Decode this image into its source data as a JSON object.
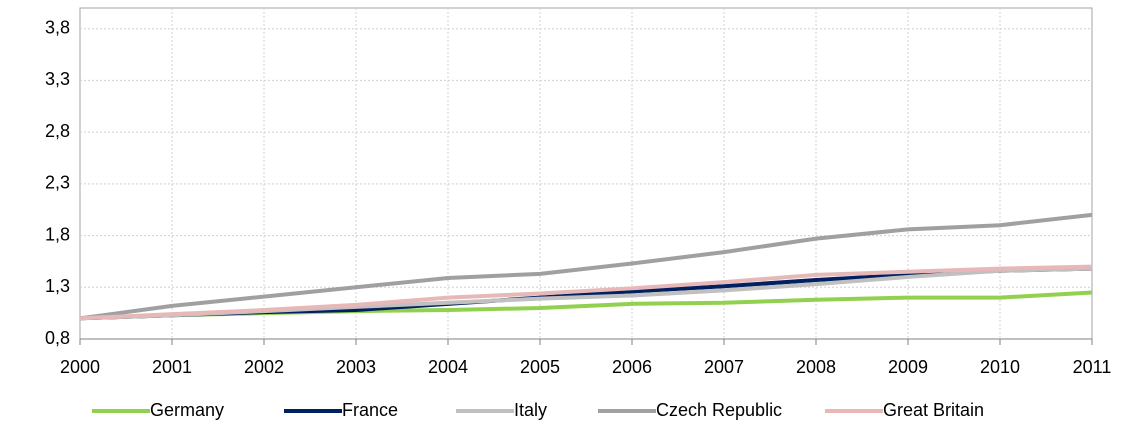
{
  "chart_data": {
    "type": "line",
    "categories": [
      "2000",
      "2001",
      "2002",
      "2003",
      "2004",
      "2005",
      "2006",
      "2007",
      "2008",
      "2009",
      "2010",
      "2011"
    ],
    "series": [
      {
        "name": "Germany",
        "color": "#92d050",
        "values": [
          1.0,
          1.03,
          1.05,
          1.07,
          1.08,
          1.1,
          1.14,
          1.15,
          1.18,
          1.2,
          1.2,
          1.25
        ]
      },
      {
        "name": "France",
        "color": "#002060",
        "values": [
          1.0,
          1.03,
          1.06,
          1.08,
          1.14,
          1.2,
          1.26,
          1.31,
          1.37,
          1.42,
          1.46,
          1.48
        ]
      },
      {
        "name": "Italy",
        "color": "#c0c0c0",
        "values": [
          1.0,
          1.03,
          1.07,
          1.11,
          1.15,
          1.19,
          1.22,
          1.27,
          1.33,
          1.4,
          1.46,
          1.48
        ]
      },
      {
        "name": "Czech Republic",
        "color": "#a0a0a0",
        "values": [
          1.0,
          1.12,
          1.21,
          1.3,
          1.39,
          1.43,
          1.53,
          1.64,
          1.77,
          1.86,
          1.9,
          2.0
        ]
      },
      {
        "name": "Great Britain",
        "color": "#e6b9b8",
        "values": [
          1.0,
          1.04,
          1.08,
          1.13,
          1.2,
          1.24,
          1.29,
          1.35,
          1.42,
          1.45,
          1.48,
          1.5
        ]
      }
    ],
    "ylim": [
      0.8,
      4.0
    ],
    "yticks": [
      {
        "value": 0.8,
        "label": "0,8"
      },
      {
        "value": 1.3,
        "label": "1,3"
      },
      {
        "value": 1.8,
        "label": "1,8"
      },
      {
        "value": 2.3,
        "label": "2,3"
      },
      {
        "value": 2.8,
        "label": "2,8"
      },
      {
        "value": 3.3,
        "label": "3,3"
      },
      {
        "value": 3.8,
        "label": "3,8"
      }
    ],
    "grid": true,
    "legend": "bottom"
  }
}
